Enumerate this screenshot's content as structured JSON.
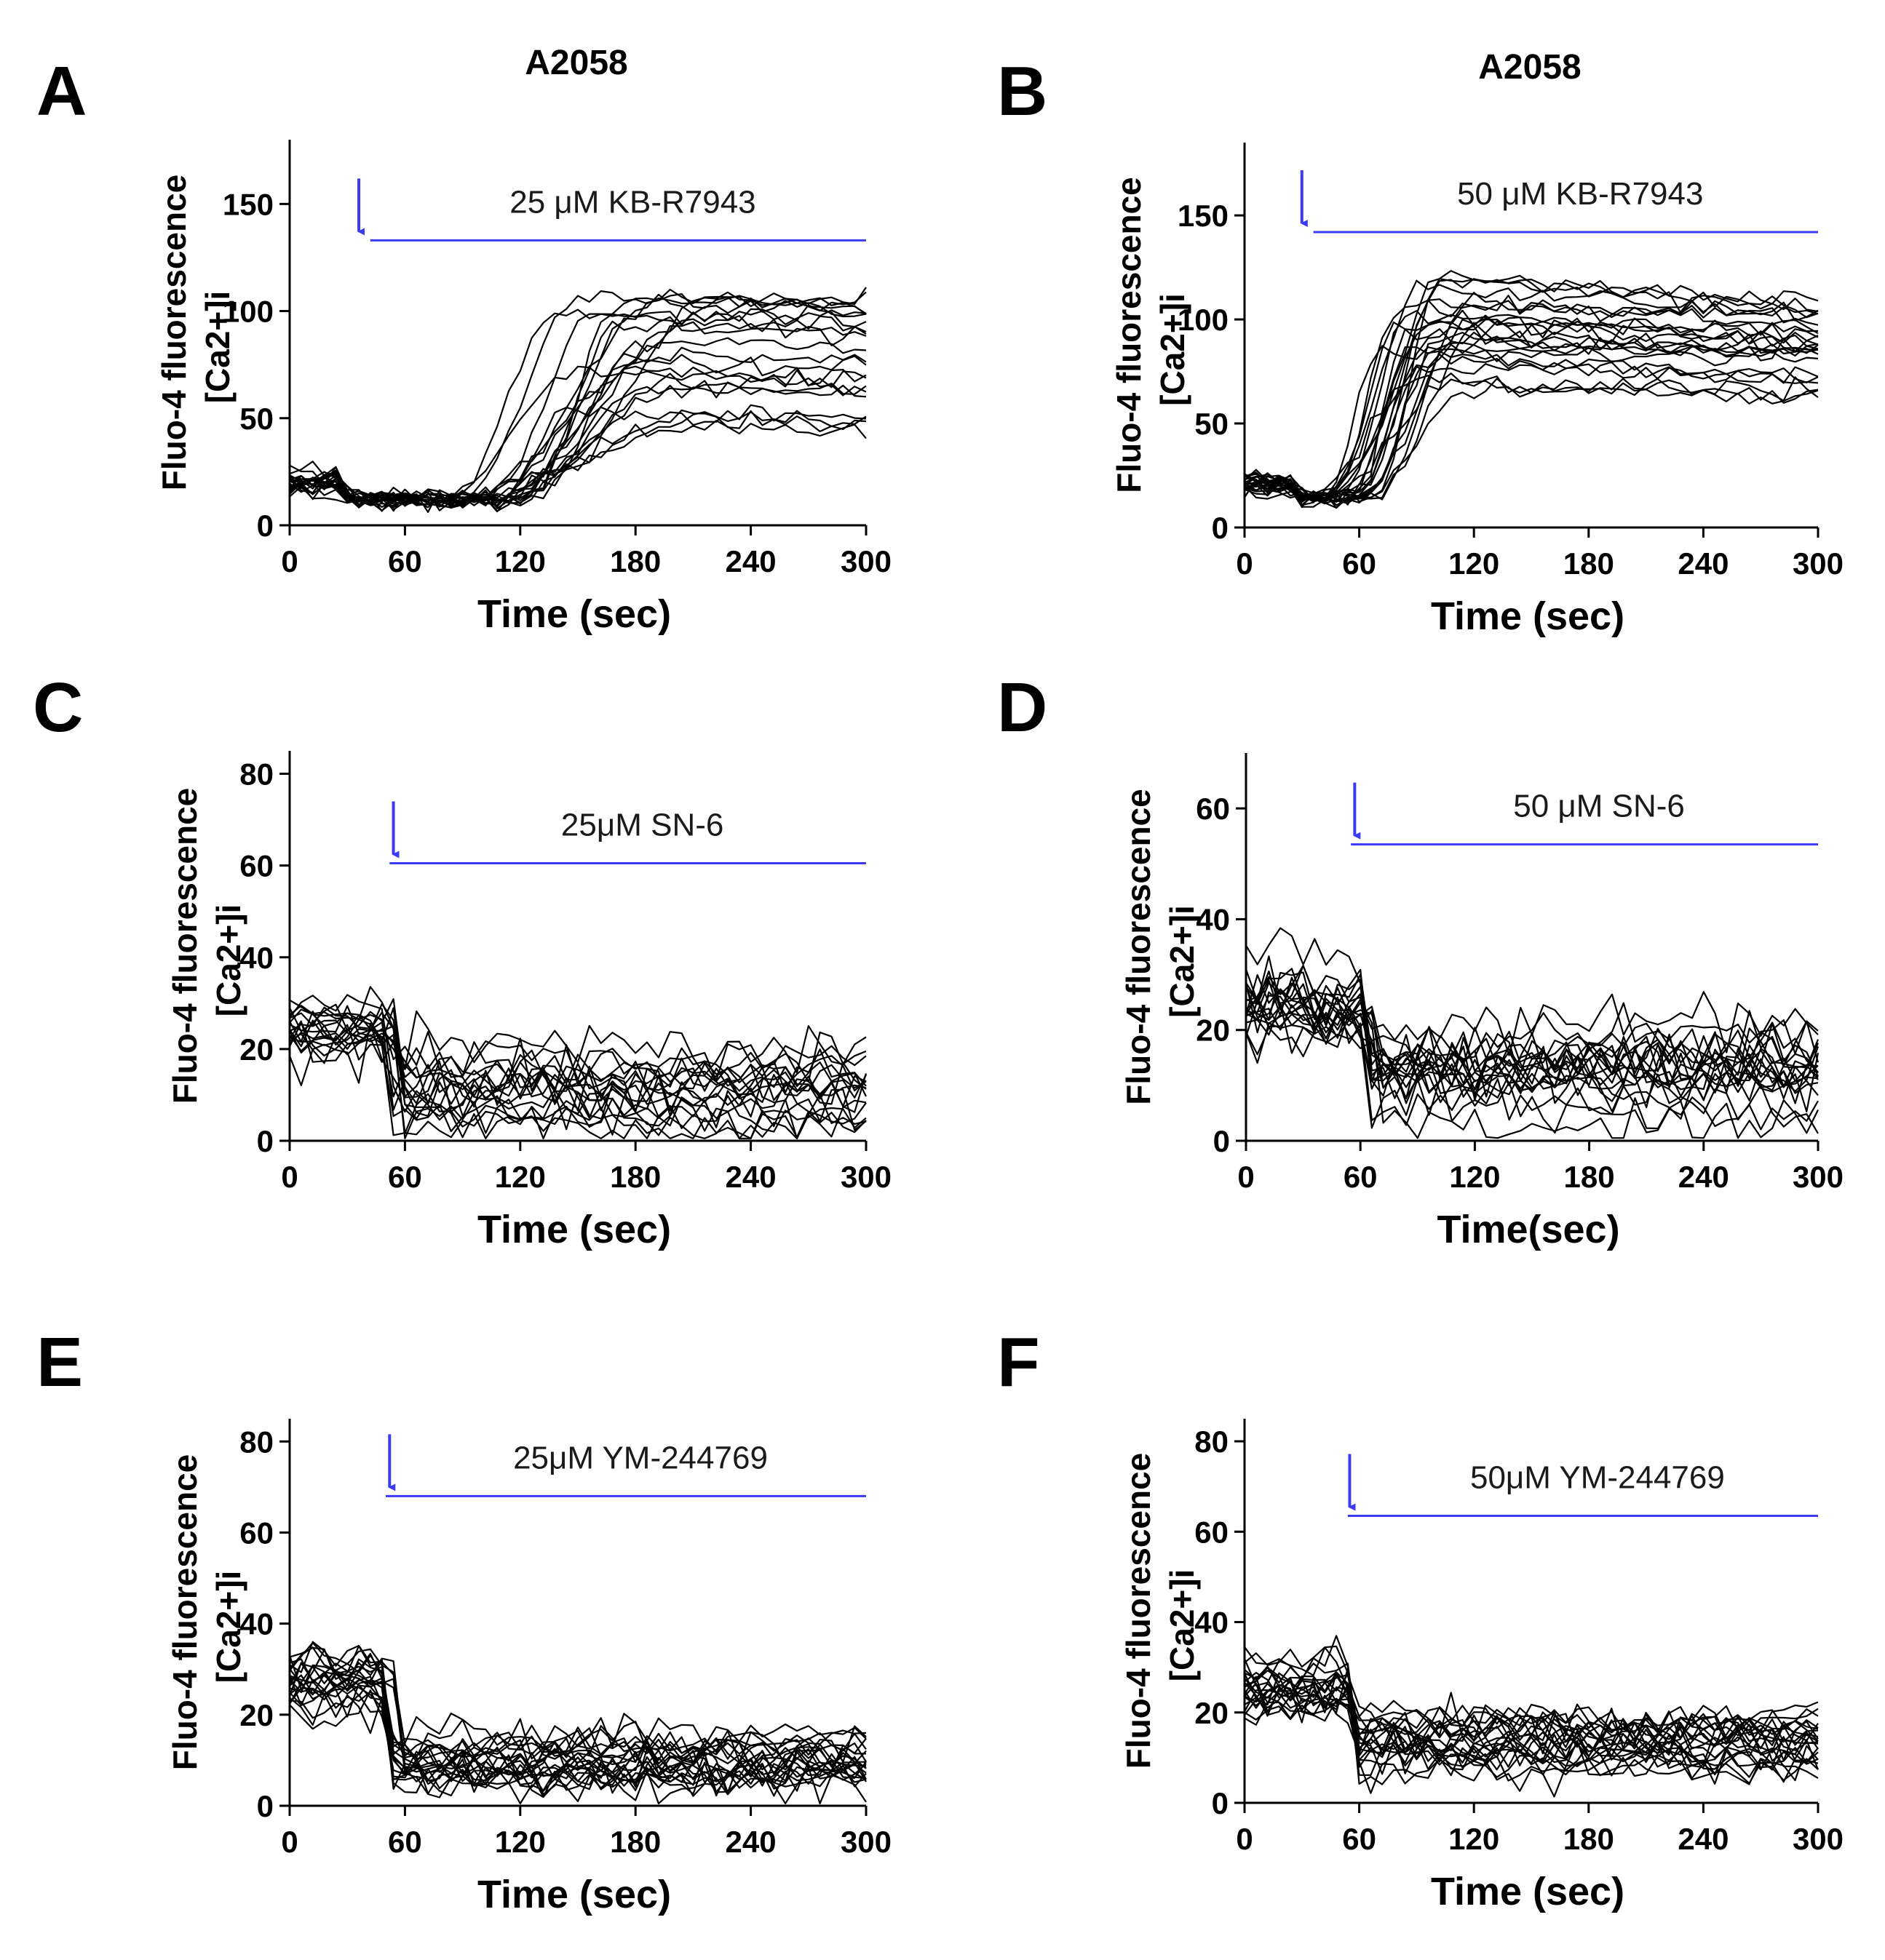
{
  "accent_color": "#3b3bf5",
  "trace_color": "#000000",
  "chart_data": [
    {
      "panel": "A",
      "cell_line": "A2058",
      "type": "line",
      "xlabel": "Time (sec)",
      "ylabel_line1": "[Ca2+]i",
      "ylabel_line2": "Fluo-4 fluorescence",
      "xlim": [
        0,
        300
      ],
      "ylim": [
        0,
        180
      ],
      "xticks": [
        0,
        60,
        120,
        180,
        240,
        300
      ],
      "yticks": [
        0,
        50,
        100,
        150
      ],
      "treatment": {
        "label": "25 μM KB-R7943",
        "arrow_time": 36,
        "bar_start": 42,
        "bar_end": 300,
        "bar_y": 133
      },
      "series_summary": {
        "n_traces": 22,
        "baseline": 20,
        "dip_time": 25,
        "dip_value": 12,
        "rise_start": 80,
        "rise_end": 200,
        "plateau_min": 38,
        "plateau_max": 118,
        "end_decay": 0.06
      }
    },
    {
      "panel": "B",
      "cell_line": "A2058",
      "type": "line",
      "xlabel": "Time (sec)",
      "ylabel_line1": "[Ca2+]i",
      "ylabel_line2": "Fluo-4 fluorescence",
      "xlim": [
        0,
        300
      ],
      "ylim": [
        0,
        185
      ],
      "xticks": [
        0,
        60,
        120,
        180,
        240,
        300
      ],
      "yticks": [
        0,
        50,
        100,
        150
      ],
      "treatment": {
        "label": "50 μM KB-R7943",
        "arrow_time": 30,
        "bar_start": 36,
        "bar_end": 300,
        "bar_y": 142
      },
      "series_summary": {
        "n_traces": 24,
        "baseline": 21,
        "dip_time": 22,
        "dip_value": 14,
        "rise_start": 42,
        "rise_end": 110,
        "plateau_min": 62,
        "plateau_max": 124,
        "end_decay": 0.14
      }
    },
    {
      "panel": "C",
      "cell_line": "",
      "type": "line",
      "xlabel": "Time (sec)",
      "ylabel_line1": "[Ca2+]i",
      "ylabel_line2": "Fluo-4 fluorescence",
      "xlim": [
        0,
        300
      ],
      "ylim": [
        0,
        85
      ],
      "xticks": [
        0,
        60,
        120,
        180,
        240,
        300
      ],
      "yticks": [
        0,
        20,
        40,
        60,
        80
      ],
      "treatment": {
        "label": "25μM SN-6",
        "arrow_time": 54,
        "bar_start": 52,
        "bar_end": 300,
        "bar_y": 60.5
      },
      "series_summary": {
        "n_traces": 18,
        "baseline": 25,
        "drop_time": 55,
        "post_level": 12,
        "post_spread": 4,
        "noise": 2.5
      }
    },
    {
      "panel": "D",
      "cell_line": "",
      "type": "line",
      "xlabel": "Time(sec)",
      "ylabel_line1": "[Ca2+]i",
      "ylabel_line2": "Fluo-4 fluorescence",
      "xlim": [
        0,
        300
      ],
      "ylim": [
        0,
        70
      ],
      "xticks": [
        0,
        60,
        120,
        180,
        240,
        300
      ],
      "yticks": [
        0,
        20,
        40,
        60
      ],
      "treatment": {
        "label": "50 μM SN-6",
        "arrow_time": 57,
        "bar_start": 55,
        "bar_end": 300,
        "bar_y": 53.5
      },
      "series_summary": {
        "n_traces": 20,
        "baseline": 24,
        "drop_time": 65,
        "post_level": 12,
        "post_spread": 5,
        "noise": 2.5
      }
    },
    {
      "panel": "E",
      "cell_line": "",
      "type": "line",
      "xlabel": "Time (sec)",
      "ylabel_line1": "[Ca2+]i",
      "ylabel_line2": "Fluo-4 fluorescence",
      "xlim": [
        0,
        300
      ],
      "ylim": [
        0,
        85
      ],
      "xticks": [
        0,
        60,
        120,
        180,
        240,
        300
      ],
      "yticks": [
        0,
        20,
        40,
        60,
        80
      ],
      "treatment": {
        "label": "25μM YM-244769",
        "arrow_time": 52,
        "bar_start": 50,
        "bar_end": 300,
        "bar_y": 68
      },
      "series_summary": {
        "n_traces": 22,
        "baseline": 26,
        "drop_time": 52,
        "post_level": 12,
        "post_spread": 3.5,
        "noise": 2.2
      }
    },
    {
      "panel": "F",
      "cell_line": "",
      "type": "line",
      "xlabel": "Time (sec)",
      "ylabel_line1": "[Ca2+]i",
      "ylabel_line2": "Fluo-4 fluorescence",
      "xlim": [
        0,
        300
      ],
      "ylim": [
        0,
        85
      ],
      "xticks": [
        0,
        60,
        120,
        180,
        240,
        300
      ],
      "yticks": [
        0,
        20,
        40,
        60,
        80
      ],
      "treatment": {
        "label": "50μM YM-244769",
        "arrow_time": 55,
        "bar_start": 54,
        "bar_end": 300,
        "bar_y": 63.5
      },
      "series_summary": {
        "n_traces": 22,
        "baseline": 24,
        "drop_time": 57,
        "post_level": 13,
        "post_spread": 3,
        "noise": 2.2
      }
    }
  ]
}
